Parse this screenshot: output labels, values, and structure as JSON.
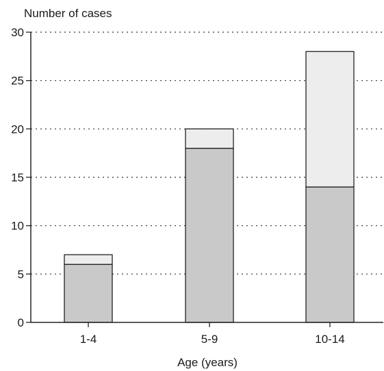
{
  "chart_data": {
    "type": "bar",
    "stacked": true,
    "title": "",
    "ylabel": "Number of cases",
    "xlabel": "Age (years)",
    "categories": [
      "1-4",
      "5-9",
      "10-14"
    ],
    "series": [
      {
        "values": [
          6,
          18,
          14
        ],
        "color": "#c9c9c9"
      },
      {
        "values": [
          1,
          2,
          14
        ],
        "color": "#ededed"
      }
    ],
    "ylim": [
      0,
      30
    ],
    "yticks": [
      0,
      5,
      10,
      15,
      20,
      25,
      30
    ],
    "grid": "dotted horizontal"
  }
}
